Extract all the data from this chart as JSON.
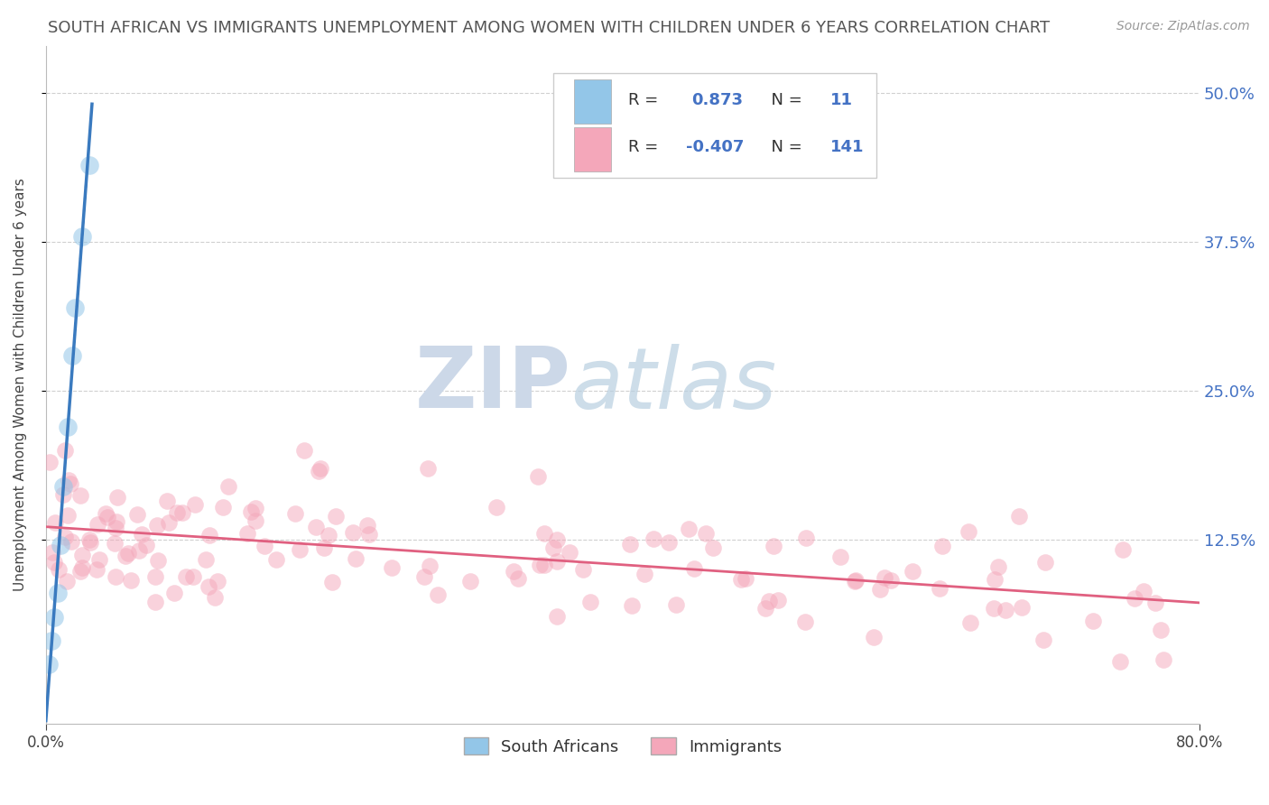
{
  "title": "SOUTH AFRICAN VS IMMIGRANTS UNEMPLOYMENT AMONG WOMEN WITH CHILDREN UNDER 6 YEARS CORRELATION CHART",
  "source": "Source: ZipAtlas.com",
  "ylabel": "Unemployment Among Women with Children Under 6 years",
  "xlim": [
    0.0,
    0.8
  ],
  "ylim": [
    -0.03,
    0.54
  ],
  "ytick_vals": [
    0.125,
    0.25,
    0.375,
    0.5
  ],
  "ytick_labels": [
    "12.5%",
    "25.0%",
    "37.5%",
    "50.0%"
  ],
  "blue_color": "#93c6e8",
  "blue_line_color": "#3a7abf",
  "pink_color": "#f4a7ba",
  "pink_line_color": "#e06080",
  "title_color": "#555555",
  "axis_label_color": "#4472c4",
  "background_color": "#ffffff",
  "grid_color": "#d0d0d0",
  "sa_seed": 0,
  "imm_seed": 42
}
